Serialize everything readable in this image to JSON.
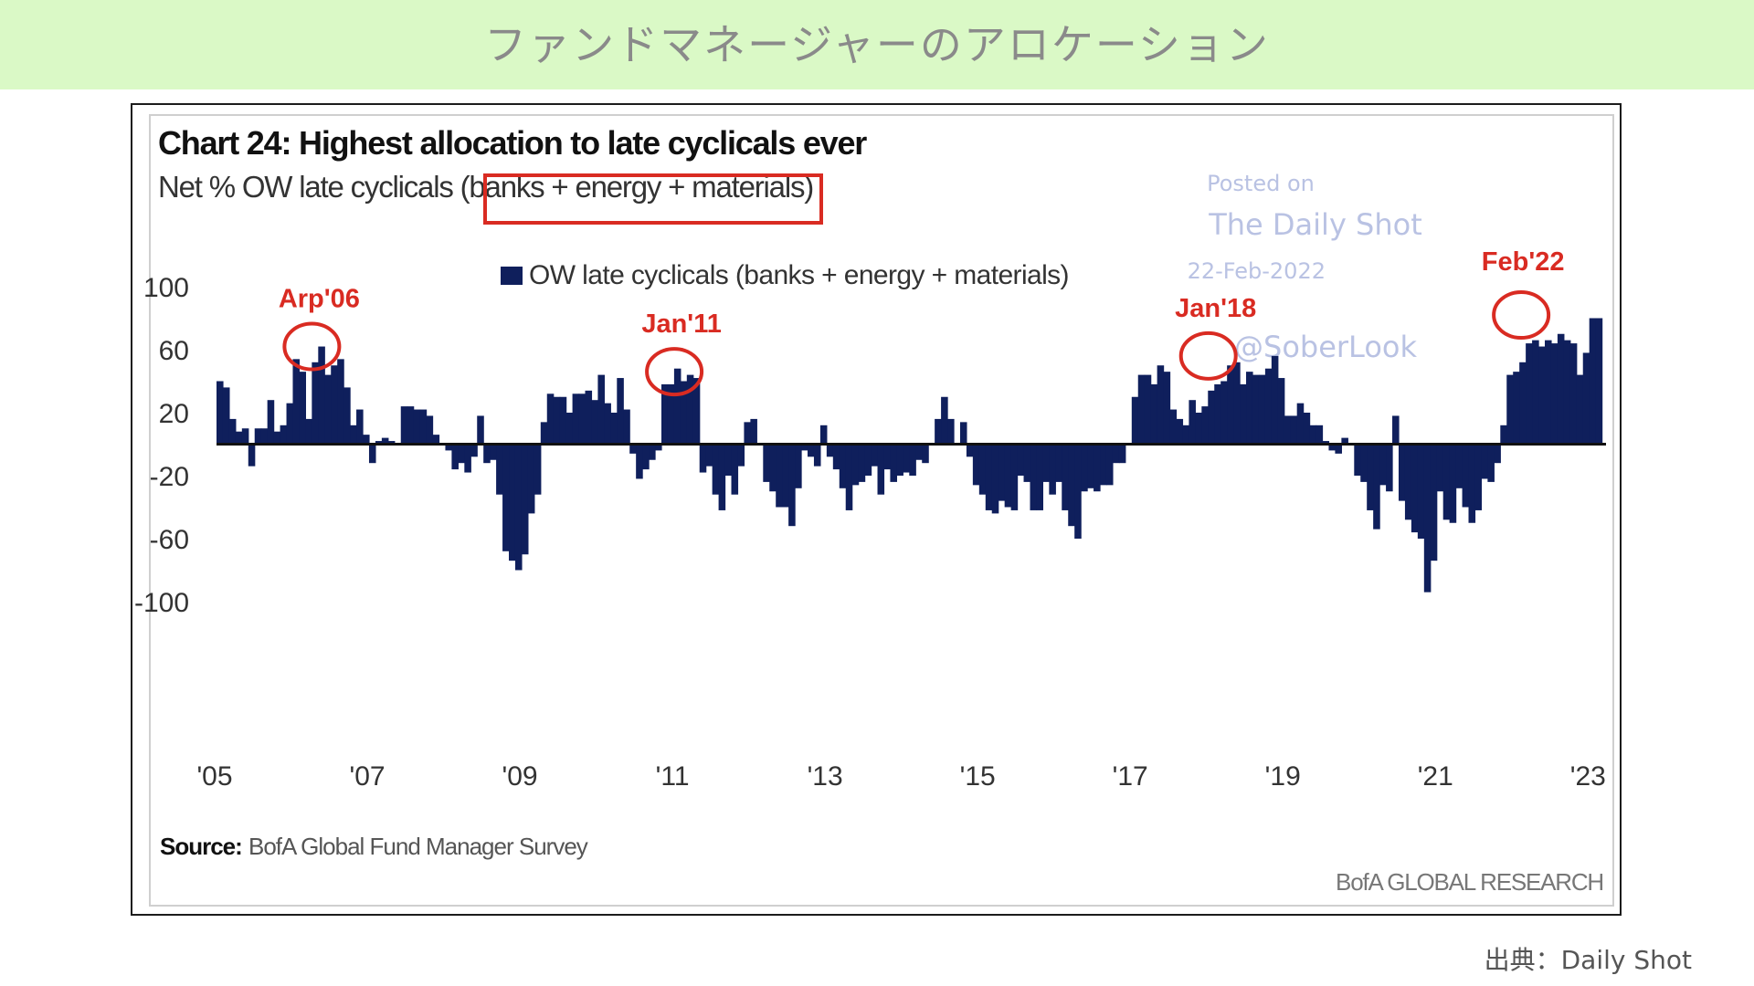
{
  "header": {
    "title": "ファンドマネージャーのアロケーション"
  },
  "footer": {
    "credit": "出典：Daily Shot"
  },
  "colors": {
    "header_bg": "#daf9c6",
    "bar": "#0f1f5c",
    "highlight": "#d92b22",
    "watermark": "#b9c2e3"
  },
  "chart_data": {
    "type": "bar",
    "title": "Chart 24: Highest allocation to late cyclicals ever",
    "subtitle_prefix": "Net % OW late cyclicals ",
    "subtitle_highlight": "(banks + energy + materials)",
    "legend": "OW late cyclicals (banks + energy + materials)",
    "source_label": "Source:",
    "source_text": "BofA Global Fund Manager Survey",
    "branding": "BofA GLOBAL RESEARCH",
    "watermark": {
      "line1": "Posted on",
      "line2": "The Daily Shot",
      "line3": "22-Feb-2022",
      "line4": "@SoberLook"
    },
    "ylim": [
      -100,
      100
    ],
    "yticks": [
      100,
      60,
      20,
      -20,
      -60,
      -100
    ],
    "xlim": [
      2005,
      2023.2
    ],
    "xticks": [
      {
        "value": 2005,
        "label": "'05"
      },
      {
        "value": 2007,
        "label": "'07"
      },
      {
        "value": 2009,
        "label": "'09"
      },
      {
        "value": 2011,
        "label": "'11"
      },
      {
        "value": 2013,
        "label": "'13"
      },
      {
        "value": 2015,
        "label": "'15"
      },
      {
        "value": 2017,
        "label": "'17"
      },
      {
        "value": 2019,
        "label": "'19"
      },
      {
        "value": 2021,
        "label": "'21"
      },
      {
        "value": 2023,
        "label": "'23"
      }
    ],
    "annotations": [
      {
        "label": "Arp'06",
        "x": 2006.25,
        "y": 62
      },
      {
        "label": "Jan'11",
        "x": 2011.0,
        "y": 46
      },
      {
        "label": "Jan'18",
        "x": 2018.0,
        "y": 56
      },
      {
        "label": "Feb'22",
        "x": 2022.1,
        "y": 82
      }
    ],
    "series": [
      {
        "start": 2005.0,
        "step": 0.0833,
        "values": [
          40,
          36,
          16,
          8,
          10,
          -14,
          10,
          10,
          28,
          8,
          12,
          26,
          54,
          46,
          16,
          52,
          62,
          44,
          50,
          54,
          36,
          12,
          22,
          6,
          -12,
          2,
          4,
          2,
          0,
          24,
          24,
          22,
          22,
          18,
          6,
          0,
          -4,
          -16,
          -12,
          -18,
          -8,
          18,
          -12,
          -10,
          -32,
          -68,
          -74,
          -80,
          -70,
          -44,
          -32,
          14,
          32,
          30,
          30,
          20,
          32,
          32,
          34,
          28,
          44,
          26,
          20,
          42,
          22,
          -6,
          -22,
          -16,
          -10,
          -4,
          38,
          38,
          48,
          40,
          44,
          42,
          -18,
          -14,
          -32,
          -42,
          -20,
          -32,
          -14,
          14,
          16,
          0,
          -24,
          -30,
          -40,
          -40,
          -52,
          -28,
          -4,
          -8,
          -14,
          12,
          -8,
          -16,
          -28,
          -42,
          -26,
          -24,
          -20,
          -14,
          -32,
          -16,
          -24,
          -20,
          -18,
          -20,
          -10,
          -12,
          0,
          16,
          30,
          16,
          0,
          14,
          -8,
          -26,
          -32,
          -42,
          -44,
          -36,
          -40,
          -42,
          -20,
          -24,
          -42,
          -42,
          -24,
          -32,
          -24,
          -42,
          -52,
          -60,
          -30,
          -28,
          -30,
          -26,
          -26,
          -12,
          -12,
          0,
          30,
          44,
          44,
          38,
          50,
          46,
          22,
          16,
          12,
          28,
          20,
          24,
          34,
          38,
          40,
          50,
          52,
          38,
          46,
          44,
          44,
          48,
          56,
          42,
          18,
          18,
          26,
          20,
          12,
          12,
          2,
          -4,
          -6,
          4,
          0,
          -20,
          -24,
          -42,
          -54,
          -26,
          -30,
          18,
          -36,
          -48,
          -56,
          -60,
          -94,
          -74,
          -30,
          -48,
          -50,
          -28,
          -40,
          -50,
          -42,
          -22,
          -24,
          -12,
          12,
          44,
          46,
          52,
          64,
          66,
          62,
          66,
          64,
          70,
          66,
          64,
          44,
          58,
          80,
          80
        ]
      }
    ]
  }
}
